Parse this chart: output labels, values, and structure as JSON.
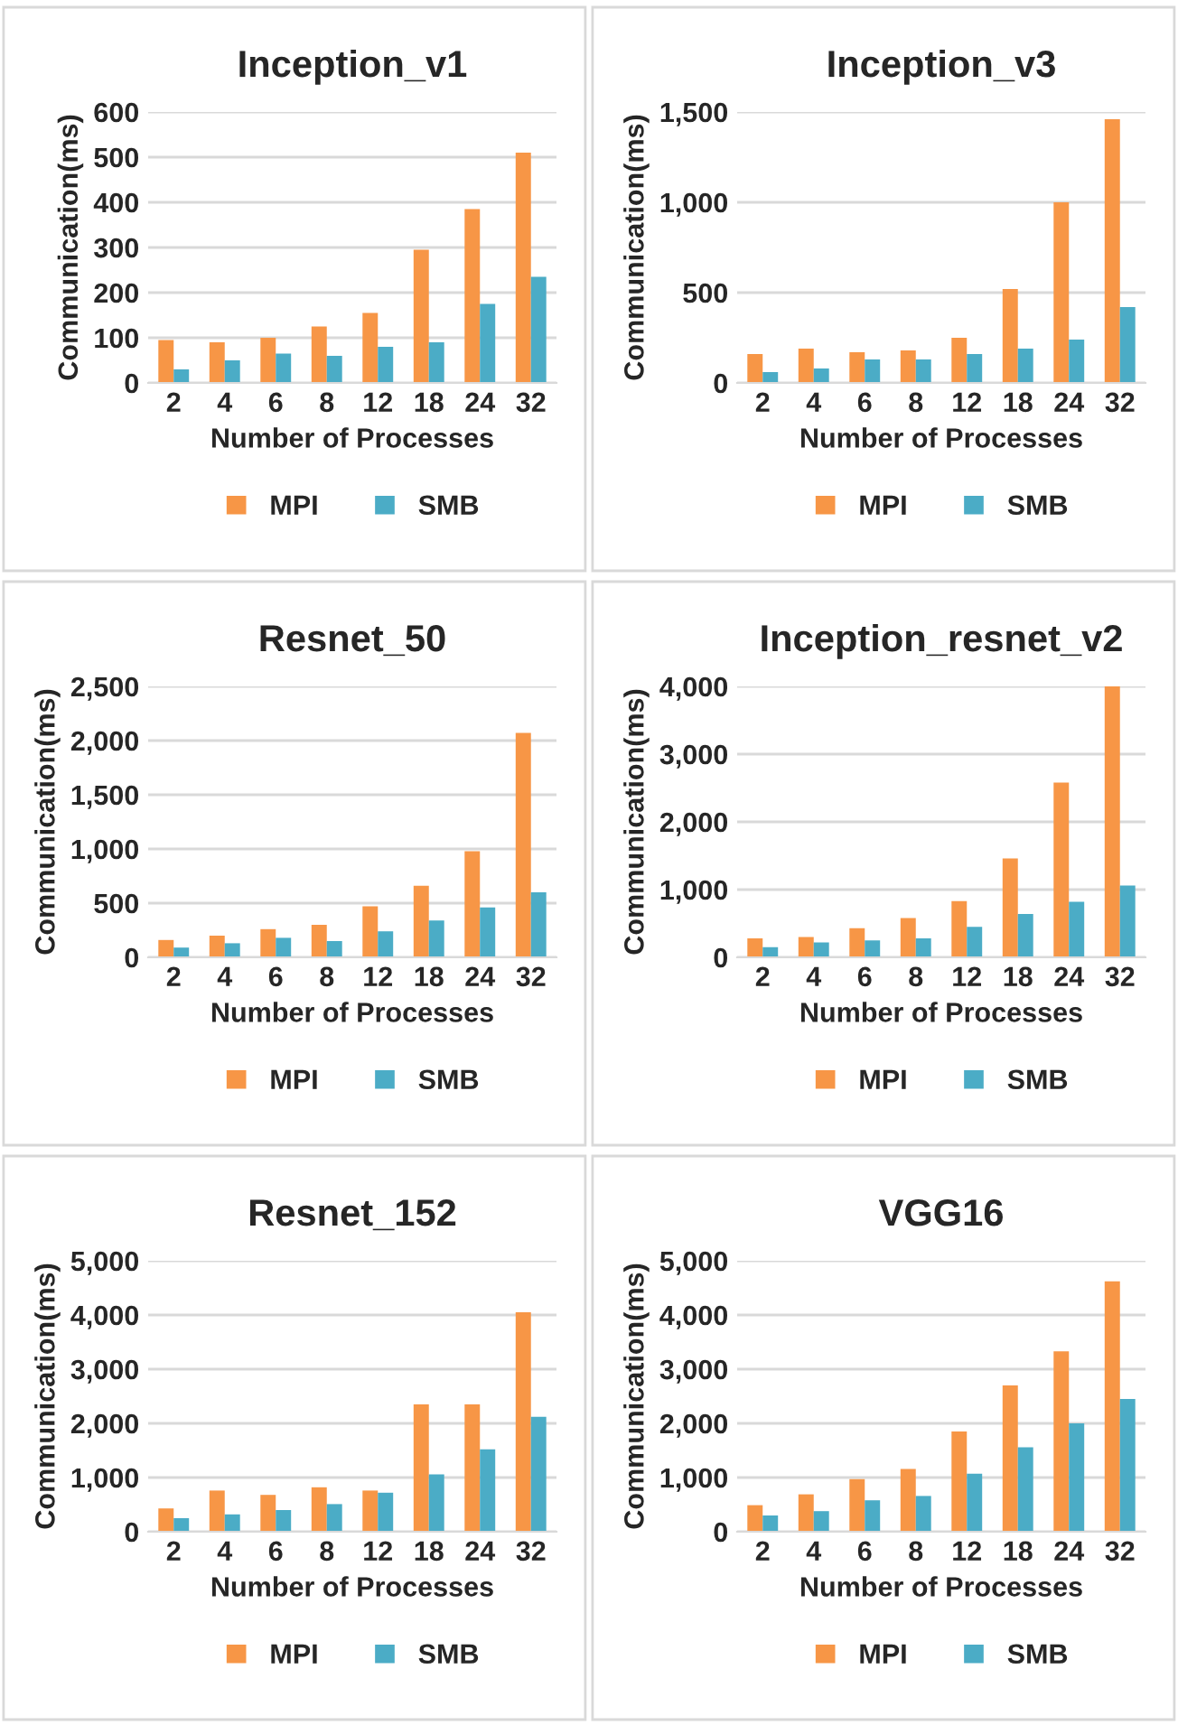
{
  "chart_data": [
    {
      "type": "bar",
      "title": "Inception_v1",
      "xlabel": "Number of Processes",
      "ylabel": "Communication(ms)",
      "categories": [
        "2",
        "4",
        "6",
        "8",
        "12",
        "18",
        "24",
        "32"
      ],
      "ylim": [
        0,
        600
      ],
      "yticks": [
        0,
        100,
        200,
        300,
        400,
        500,
        600
      ],
      "grid": "y",
      "legend": "bottom",
      "series": [
        {
          "name": "MPI",
          "color": "#f79646",
          "values": [
            95,
            90,
            100,
            125,
            155,
            295,
            385,
            510
          ]
        },
        {
          "name": "SMB",
          "color": "#4bacc6",
          "values": [
            30,
            50,
            65,
            60,
            80,
            90,
            175,
            235
          ]
        }
      ]
    },
    {
      "type": "bar",
      "title": "Inception_v3",
      "xlabel": "Number of Processes",
      "ylabel": "Communication(ms)",
      "categories": [
        "2",
        "4",
        "6",
        "8",
        "12",
        "18",
        "24",
        "32"
      ],
      "ylim": [
        0,
        1500
      ],
      "yticks": [
        0,
        500,
        {
          "value": 1000,
          "label": "1,000"
        },
        {
          "value": 1500,
          "label": "1,500"
        }
      ],
      "grid": "y",
      "legend": "bottom",
      "series": [
        {
          "name": "MPI",
          "color": "#f79646",
          "values": [
            160,
            190,
            170,
            180,
            250,
            520,
            1000,
            1460
          ]
        },
        {
          "name": "SMB",
          "color": "#4bacc6",
          "values": [
            60,
            80,
            130,
            130,
            160,
            190,
            240,
            420
          ]
        }
      ]
    },
    {
      "type": "bar",
      "title": "Resnet_50",
      "xlabel": "Number of Processes",
      "ylabel": "Communication(ms)",
      "categories": [
        "2",
        "4",
        "6",
        "8",
        "12",
        "18",
        "24",
        "32"
      ],
      "ylim": [
        0,
        2500
      ],
      "yticks": [
        0,
        500,
        {
          "value": 1000,
          "label": "1,000"
        },
        {
          "value": 1500,
          "label": "1,500"
        },
        {
          "value": 2000,
          "label": "2,000"
        },
        {
          "value": 2500,
          "label": "2,500"
        }
      ],
      "grid": "y",
      "legend": "bottom",
      "series": [
        {
          "name": "MPI",
          "color": "#f79646",
          "values": [
            160,
            200,
            260,
            300,
            470,
            660,
            980,
            2070
          ]
        },
        {
          "name": "SMB",
          "color": "#4bacc6",
          "values": [
            90,
            130,
            180,
            150,
            240,
            340,
            460,
            600
          ]
        }
      ]
    },
    {
      "type": "bar",
      "title": "Inception_resnet_v2",
      "xlabel": "Number of Processes",
      "ylabel": "Communication(ms)",
      "categories": [
        "2",
        "4",
        "6",
        "8",
        "12",
        "18",
        "24",
        "32"
      ],
      "ylim": [
        0,
        4000
      ],
      "yticks": [
        0,
        {
          "value": 1000,
          "label": "1,000"
        },
        {
          "value": 2000,
          "label": "2,000"
        },
        {
          "value": 3000,
          "label": "3,000"
        },
        {
          "value": 4000,
          "label": "4,000"
        }
      ],
      "grid": "y",
      "legend": "bottom",
      "series": [
        {
          "name": "MPI",
          "color": "#f79646",
          "values": [
            280,
            300,
            430,
            580,
            830,
            1460,
            2580,
            4000
          ]
        },
        {
          "name": "SMB",
          "color": "#4bacc6",
          "values": [
            150,
            220,
            250,
            280,
            450,
            640,
            820,
            1060
          ]
        }
      ]
    },
    {
      "type": "bar",
      "title": "Resnet_152",
      "xlabel": "Number of Processes",
      "ylabel": "Communication(ms)",
      "categories": [
        "2",
        "4",
        "6",
        "8",
        "12",
        "18",
        "24",
        "32"
      ],
      "ylim": [
        0,
        5000
      ],
      "yticks": [
        0,
        {
          "value": 1000,
          "label": "1,000"
        },
        {
          "value": 2000,
          "label": "2,000"
        },
        {
          "value": 3000,
          "label": "3,000"
        },
        {
          "value": 4000,
          "label": "4,000"
        },
        {
          "value": 5000,
          "label": "5,000"
        }
      ],
      "grid": "y",
      "legend": "bottom",
      "series": [
        {
          "name": "MPI",
          "color": "#f79646",
          "values": [
            430,
            760,
            680,
            820,
            760,
            2350,
            2350,
            4050
          ]
        },
        {
          "name": "SMB",
          "color": "#4bacc6",
          "values": [
            250,
            320,
            400,
            510,
            720,
            1060,
            1520,
            2120
          ]
        }
      ]
    },
    {
      "type": "bar",
      "title": "VGG16",
      "xlabel": "Number of Processes",
      "ylabel": "Communication(ms)",
      "categories": [
        "2",
        "4",
        "6",
        "8",
        "12",
        "18",
        "24",
        "32"
      ],
      "ylim": [
        0,
        5000
      ],
      "yticks": [
        0,
        {
          "value": 1000,
          "label": "1,000"
        },
        {
          "value": 2000,
          "label": "2,000"
        },
        {
          "value": 3000,
          "label": "3,000"
        },
        {
          "value": 4000,
          "label": "4,000"
        },
        {
          "value": 5000,
          "label": "5,000"
        }
      ],
      "grid": "y",
      "legend": "bottom",
      "series": [
        {
          "name": "MPI",
          "color": "#f79646",
          "values": [
            490,
            690,
            970,
            1160,
            1850,
            2700,
            3330,
            4620
          ]
        },
        {
          "name": "SMB",
          "color": "#4bacc6",
          "values": [
            300,
            380,
            580,
            660,
            1070,
            1560,
            2000,
            2450
          ]
        }
      ]
    }
  ]
}
